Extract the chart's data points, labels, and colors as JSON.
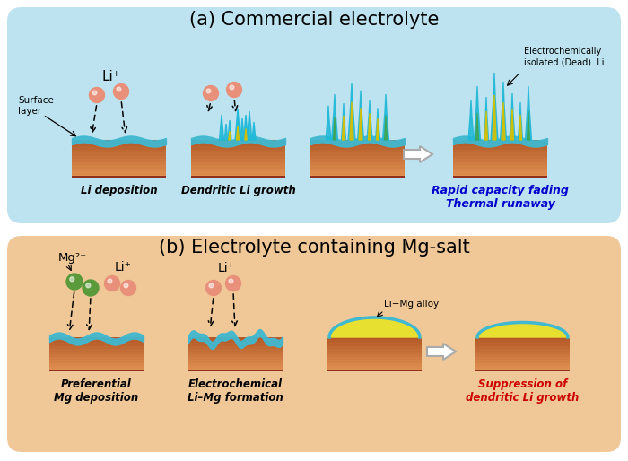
{
  "panel_a_title": "(a) Commercial electrolyte",
  "panel_b_title": "(b) Electrolyte containing Mg-salt",
  "panel_a_bg": "#bde3f0",
  "panel_b_bg": "#f0c898",
  "li_ion_color": "#e8907a",
  "li_ion_edge": "#d06050",
  "mg_ion_color": "#5a9a3a",
  "mg_ion_edge": "#3a7020",
  "electrode_top_color": "#40b8d0",
  "electrode_body_top": "#e09050",
  "electrode_body_bot": "#b86030",
  "yellow_dendrite": "#d8c000",
  "cyan_dendrite": "#20b8d8",
  "green_dendrite": "#40a040",
  "li_mg_alloy_color": "#e8e030",
  "li_mg_edge": "#30c030",
  "text_blue": "#0000cc",
  "text_red": "#cc0000",
  "label_a1": "Li deposition",
  "label_a2": "Dendritic Li growth",
  "label_a3": "Rapid capacity fading\nThermal runaway",
  "label_b1": "Preferential\nMg deposition",
  "label_b2": "Electrochemical\nLi–Mg formation",
  "label_b3": "Suppression of\ndendritic Li growth",
  "surface_layer": "Surface\nlayer",
  "li_plus": "Li⁺",
  "mg_plus": "Mg²⁺",
  "electrochemically": "Electrochemically\nisolated (Dead)  Li",
  "li_mg_alloy": "Li−Mg alloy"
}
